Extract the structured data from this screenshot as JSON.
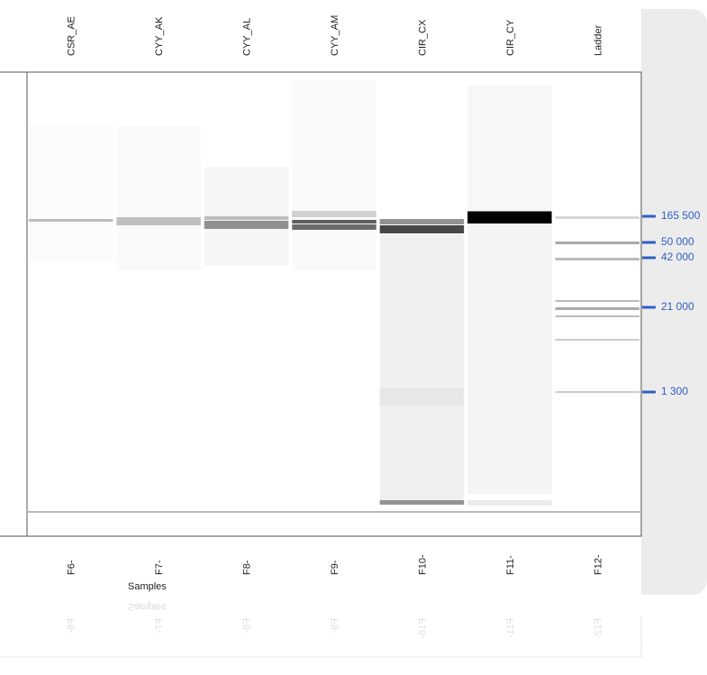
{
  "lanes": [
    {
      "name": "CSR_AE",
      "well": "F6-"
    },
    {
      "name": "CYY_AK",
      "well": "F7-"
    },
    {
      "name": "CYY_AL",
      "well": "F8-"
    },
    {
      "name": "CYY_AM",
      "well": "F9-"
    },
    {
      "name": "CIR_CX",
      "well": "F10-"
    },
    {
      "name": "CIR_CY",
      "well": "F11-"
    },
    {
      "name": "Ladder",
      "well": "F12-"
    }
  ],
  "axis_label": "Samples",
  "markers": [
    "165 500",
    "50 000",
    "42 000",
    "21 000",
    "1 300"
  ]
}
